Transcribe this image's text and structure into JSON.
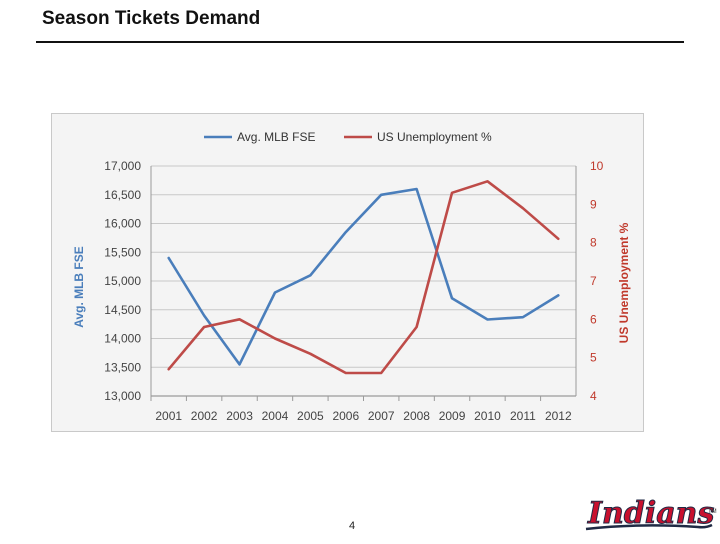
{
  "slide": {
    "title": "Season Tickets Demand",
    "page_number": "4"
  },
  "logo": {
    "text": "Indians",
    "tm": "TM",
    "color": "#c8102e"
  },
  "chart_data": {
    "type": "line",
    "title": "",
    "x": [
      "2001",
      "2002",
      "2003",
      "2004",
      "2005",
      "2006",
      "2007",
      "2008",
      "2009",
      "2010",
      "2011",
      "2012"
    ],
    "series": [
      {
        "name": "Avg. MLB FSE",
        "axis": "left",
        "color": "#4a7ebb",
        "values": [
          15400,
          14400,
          13550,
          14800,
          15100,
          15850,
          16500,
          16600,
          14700,
          14330,
          14370,
          14750
        ]
      },
      {
        "name": "US Unemployment %",
        "axis": "right",
        "color": "#be4b48",
        "values": [
          4.7,
          5.8,
          6.0,
          5.5,
          5.1,
          4.6,
          4.6,
          5.8,
          9.3,
          9.6,
          8.9,
          8.1
        ]
      }
    ],
    "ylabel": "Avg. MLB FSE",
    "y2label": "US Unemployment %",
    "ylim": [
      13000,
      17000
    ],
    "y2lim": [
      4,
      10
    ],
    "yticks": [
      "13,000",
      "13,500",
      "14,000",
      "14,500",
      "15,000",
      "15,500",
      "16,000",
      "16,500",
      "17,000"
    ],
    "y2ticks": [
      "4",
      "5",
      "6",
      "7",
      "8",
      "9",
      "10"
    ],
    "grid": true,
    "legend_position": "top"
  }
}
